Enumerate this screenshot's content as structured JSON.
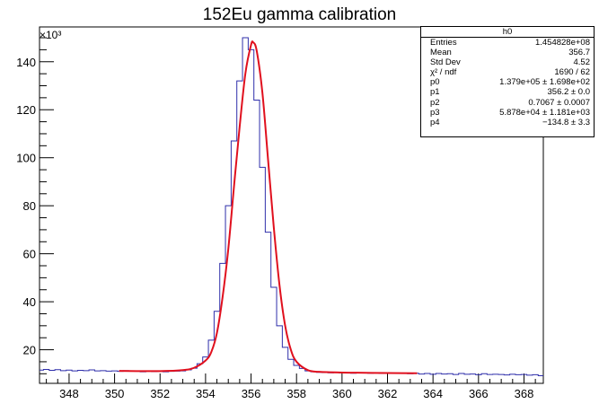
{
  "chart_data": {
    "type": "line",
    "title": "152Eu gamma calibration",
    "xlabel": "",
    "ylabel": "",
    "xlim": [
      346.7,
      368.85
    ],
    "ylim": [
      6000,
      154500
    ],
    "y_exponent_label": "×10³",
    "x_ticks": [
      348,
      350,
      352,
      354,
      356,
      358,
      360,
      362,
      364,
      366,
      368
    ],
    "x_tick_labels": [
      "348",
      "350",
      "352",
      "354",
      "356",
      "358",
      "360",
      "362",
      "364",
      "366",
      "368"
    ],
    "y_ticks": [
      20000,
      40000,
      60000,
      80000,
      100000,
      120000,
      140000
    ],
    "y_tick_labels": [
      "20",
      "40",
      "60",
      "80",
      "100",
      "120",
      "140"
    ],
    "series": [
      {
        "style": "histogram",
        "color": "#2e2eaa",
        "x": [
          346.75,
          347.0,
          347.25,
          347.5,
          347.75,
          348.0,
          348.25,
          348.5,
          348.75,
          349.0,
          349.25,
          349.5,
          349.75,
          350.0,
          350.25,
          350.5,
          350.75,
          351.0,
          351.25,
          351.5,
          351.75,
          352.0,
          352.25,
          352.5,
          352.75,
          353.0,
          353.25,
          353.5,
          353.75,
          354.0,
          354.25,
          354.5,
          354.75,
          355.0,
          355.25,
          355.5,
          355.75,
          356.0,
          356.25,
          356.5,
          356.75,
          357.0,
          357.25,
          357.5,
          357.75,
          358.0,
          358.25,
          358.5,
          358.75,
          359.0,
          359.25,
          359.5,
          359.75,
          360.0,
          360.25,
          360.5,
          360.75,
          361.0,
          361.25,
          361.5,
          361.75,
          362.0,
          362.25,
          362.5,
          362.75,
          363.0,
          363.25,
          363.5,
          363.75,
          364.0,
          364.25,
          364.5,
          364.75,
          365.0,
          365.25,
          365.5,
          365.75,
          366.0,
          366.25,
          366.5,
          366.75,
          367.0,
          367.25,
          367.5,
          367.75,
          368.0,
          368.25,
          368.5,
          368.75
        ],
        "y": [
          11500,
          11800,
          11400,
          11700,
          11300,
          11500,
          11200,
          11400,
          11300,
          11600,
          11200,
          11300,
          11100,
          11200,
          11000,
          11300,
          11100,
          11200,
          10800,
          11200,
          10900,
          11000,
          10800,
          11000,
          11100,
          11200,
          11600,
          12300,
          14200,
          17000,
          24000,
          36000,
          56000,
          80000,
          107000,
          132000,
          150000,
          145000,
          124000,
          96000,
          69000,
          46000,
          30000,
          21000,
          16000,
          13500,
          12200,
          11200,
          10800,
          10600,
          10500,
          10400,
          10500,
          10300,
          10400,
          10200,
          10500,
          10300,
          10200,
          10400,
          10100,
          10300,
          10200,
          10300,
          10100,
          10000,
          10200,
          9900,
          10100,
          9800,
          10100,
          9900,
          10000,
          9700,
          10100,
          9800,
          9900,
          9600,
          10000,
          9700,
          9800,
          9700,
          9500,
          9800,
          9600,
          9700,
          9400,
          9600,
          9200
        ]
      },
      {
        "style": "smooth",
        "color": "#e0101e",
        "x": [
          350.2,
          352.0,
          353.0,
          353.5,
          354.0,
          354.25,
          354.5,
          354.75,
          355.0,
          355.25,
          355.5,
          355.75,
          356.0,
          356.1,
          356.25,
          356.5,
          356.75,
          357.0,
          357.25,
          357.5,
          357.75,
          358.0,
          358.5,
          359.0,
          360.0,
          361.0,
          362.0,
          363.3
        ],
        "y": [
          11200,
          11100,
          11500,
          12500,
          15500,
          19000,
          27000,
          42000,
          62000,
          88000,
          113000,
          135000,
          147000,
          148000,
          144500,
          127000,
          99000,
          71000,
          47000,
          30000,
          20000,
          15000,
          11500,
          10800,
          10500,
          10400,
          10300,
          10200
        ]
      }
    ],
    "stats_box": {
      "title": "h0",
      "rows": [
        {
          "label": "Entries",
          "value": "1.454828e+08"
        },
        {
          "label": "Mean",
          "value": "356.7"
        },
        {
          "label": "Std Dev",
          "value": "4.52"
        },
        {
          "label": "χ² / ndf",
          "value": "1690 / 62"
        },
        {
          "label": "p0",
          "value": "1.379e+05 ± 1.698e+02"
        },
        {
          "label": "p1",
          "value": "356.2 ± 0.0"
        },
        {
          "label": "p2",
          "value": "0.7067 ± 0.0007"
        },
        {
          "label": "p3",
          "value": "5.878e+04 ± 1.181e+03"
        },
        {
          "label": "p4",
          "value": "−134.8 ± 3.3"
        }
      ]
    }
  }
}
